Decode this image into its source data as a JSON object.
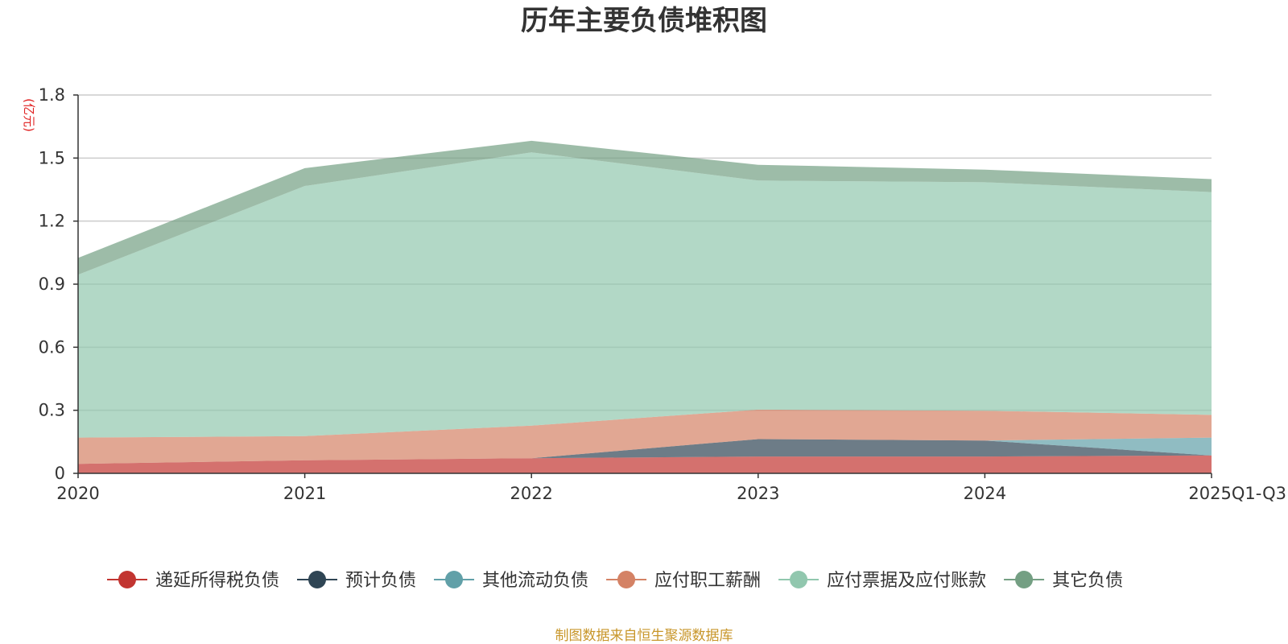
{
  "chart_data": {
    "type": "area",
    "stacked": true,
    "title": "历年主要负债堆积图",
    "unit": "(亿元)",
    "categories": [
      "2020",
      "2021",
      "2022",
      "2023",
      "2024",
      "2025Q1-Q3"
    ],
    "y_ticks": [
      "0",
      "0.3",
      "0.6",
      "0.9",
      "1.2",
      "1.5",
      "1.8"
    ],
    "ylim": [
      0,
      1.8
    ],
    "grid": true,
    "legend_position": "bottom",
    "series": [
      {
        "name": "递延所得税负债",
        "color": "#c23531",
        "values": [
          0.045,
          0.062,
          0.072,
          0.08,
          0.08,
          0.085
        ]
      },
      {
        "name": "预计负债",
        "color": "#2f4554",
        "values": [
          0,
          0,
          0,
          0.083,
          0.076,
          0
        ]
      },
      {
        "name": "其他流动负债",
        "color": "#61a0a8",
        "values": [
          0,
          0,
          0,
          0,
          0,
          0.085
        ]
      },
      {
        "name": "应付职工薪酬",
        "color": "#d48265",
        "values": [
          0.125,
          0.115,
          0.155,
          0.14,
          0.142,
          0.108
        ]
      },
      {
        "name": "应付票据及应付账款",
        "color": "#91c7ae",
        "values": [
          0.775,
          1.19,
          1.3,
          1.09,
          1.087,
          1.06
        ]
      },
      {
        "name": "其它负债",
        "color": "#749f83",
        "values": [
          0.08,
          0.085,
          0.055,
          0.075,
          0.06,
          0.062
        ]
      }
    ]
  },
  "source_note": "制图数据来自恒生聚源数据库"
}
